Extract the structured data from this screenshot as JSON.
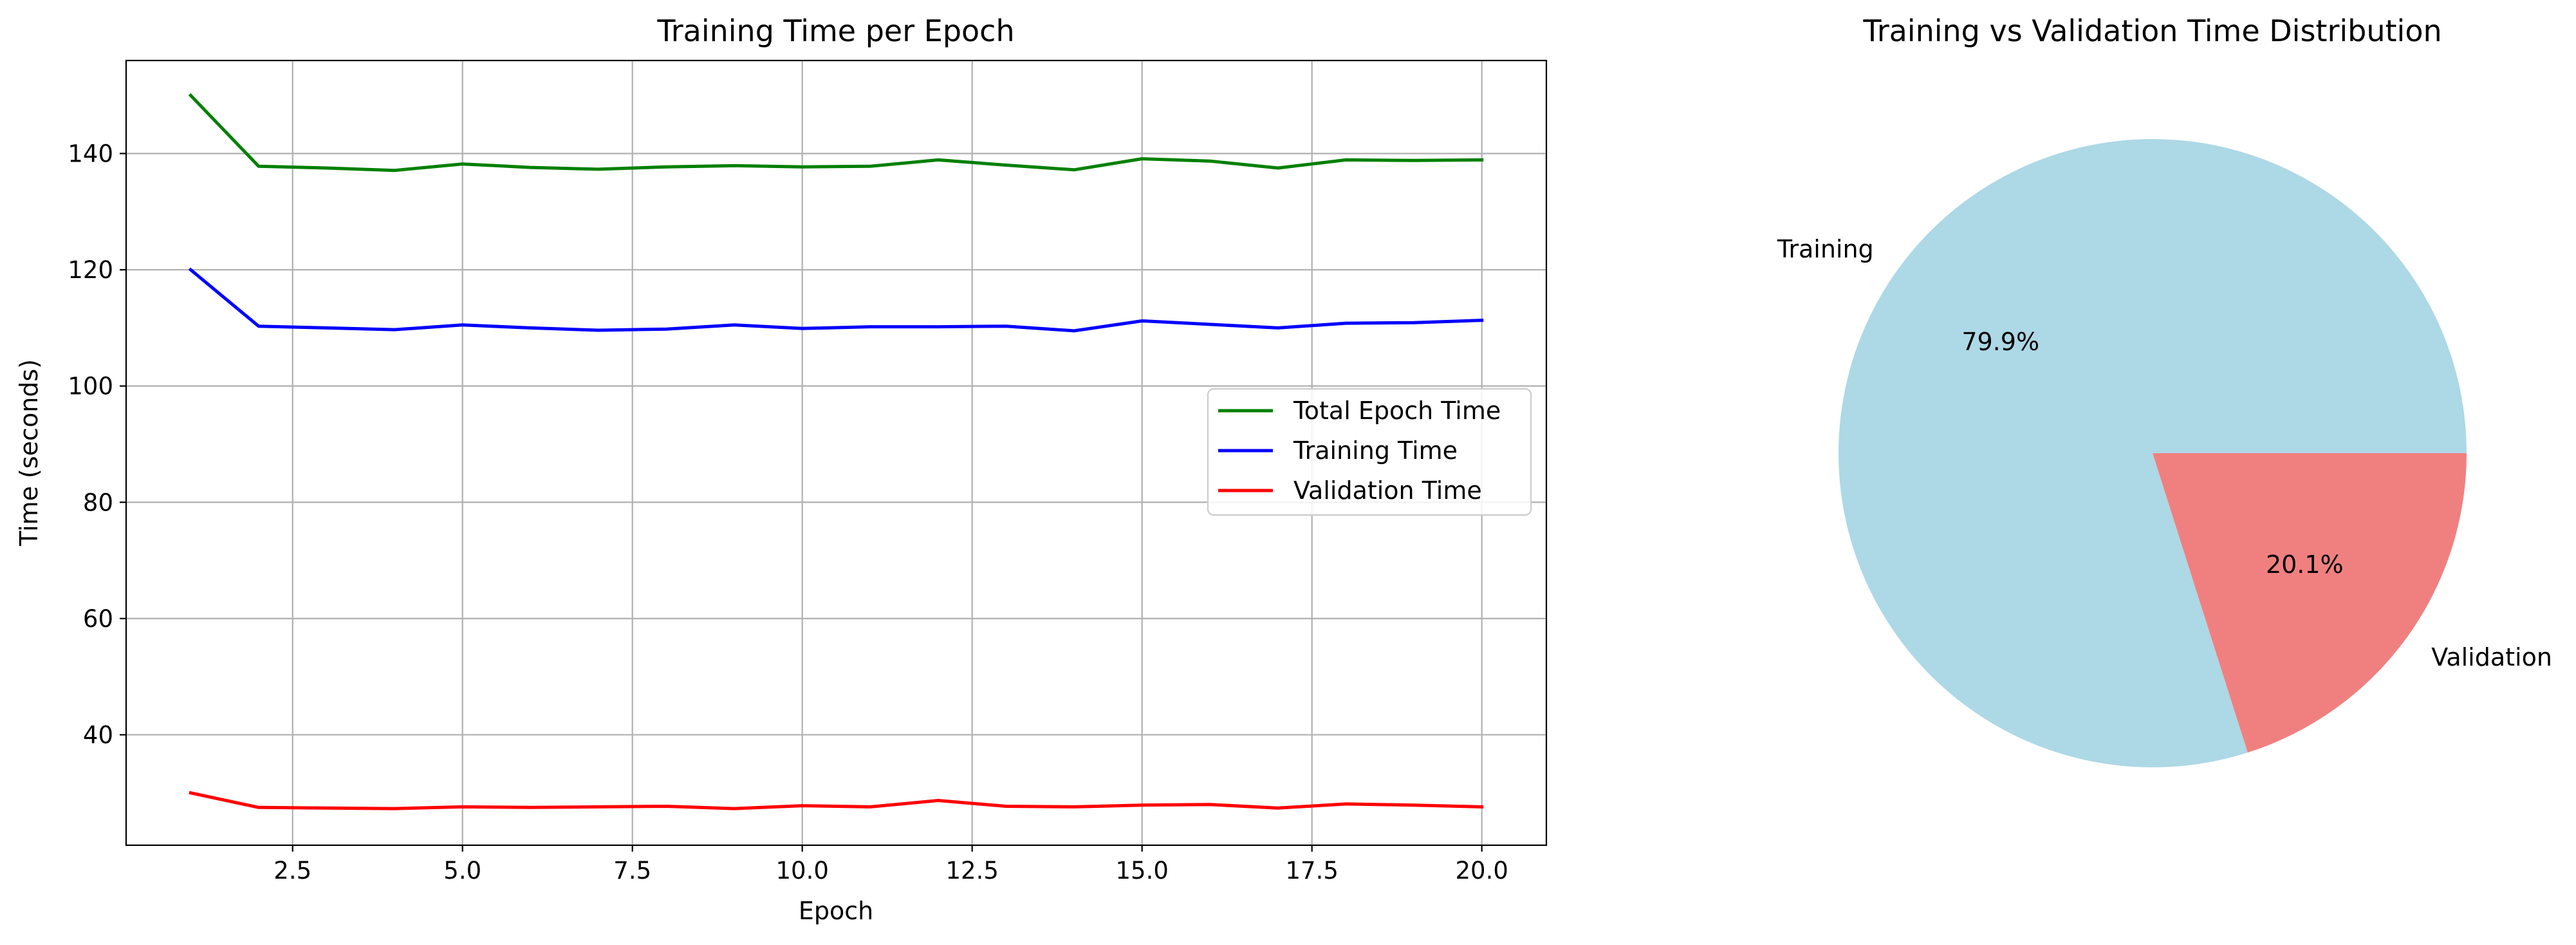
{
  "chart_data": [
    {
      "type": "line",
      "title": "Training Time per Epoch",
      "xlabel": "Epoch",
      "ylabel": "Time (seconds)",
      "xlim": [
        0.05,
        20.95
      ],
      "ylim": [
        21.0,
        156.0
      ],
      "xticks": [
        2.5,
        5.0,
        7.5,
        10.0,
        12.5,
        15.0,
        17.5,
        20.0
      ],
      "xtick_labels": [
        "2.5",
        "5.0",
        "7.5",
        "10.0",
        "12.5",
        "15.0",
        "17.5",
        "20.0"
      ],
      "yticks": [
        40,
        60,
        80,
        100,
        120,
        140
      ],
      "ytick_labels": [
        "40",
        "60",
        "80",
        "100",
        "120",
        "140"
      ],
      "grid": true,
      "legend_position": "center-right",
      "x": [
        1,
        2,
        3,
        4,
        5,
        6,
        7,
        8,
        9,
        10,
        11,
        12,
        13,
        14,
        15,
        16,
        17,
        18,
        19,
        20
      ],
      "series": [
        {
          "name": "Total Epoch Time",
          "color": "#008000",
          "values": [
            150.0,
            137.8,
            137.5,
            137.1,
            138.2,
            137.6,
            137.3,
            137.7,
            137.9,
            137.7,
            137.8,
            138.9,
            138.0,
            137.2,
            139.1,
            138.7,
            137.5,
            138.9,
            138.8,
            138.9
          ]
        },
        {
          "name": "Training Time",
          "color": "#0000ff",
          "values": [
            120.0,
            110.3,
            110.0,
            109.7,
            110.5,
            110.0,
            109.6,
            109.8,
            110.5,
            109.9,
            110.2,
            110.2,
            110.3,
            109.5,
            111.2,
            110.6,
            110.0,
            110.8,
            110.9,
            111.3
          ]
        },
        {
          "name": "Validation Time",
          "color": "#ff0000",
          "values": [
            30.0,
            27.5,
            27.4,
            27.3,
            27.6,
            27.5,
            27.6,
            27.7,
            27.3,
            27.8,
            27.6,
            28.7,
            27.7,
            27.6,
            27.9,
            28.0,
            27.4,
            28.1,
            27.9,
            27.6
          ]
        }
      ]
    },
    {
      "type": "pie",
      "title": "Training vs Validation Time Distribution",
      "slices": [
        {
          "label": "Training",
          "value": 79.9,
          "pct_label": "79.9%",
          "color": "#add8e6"
        },
        {
          "label": "Validation",
          "value": 20.1,
          "pct_label": "20.1%",
          "color": "#f08080"
        }
      ]
    }
  ]
}
